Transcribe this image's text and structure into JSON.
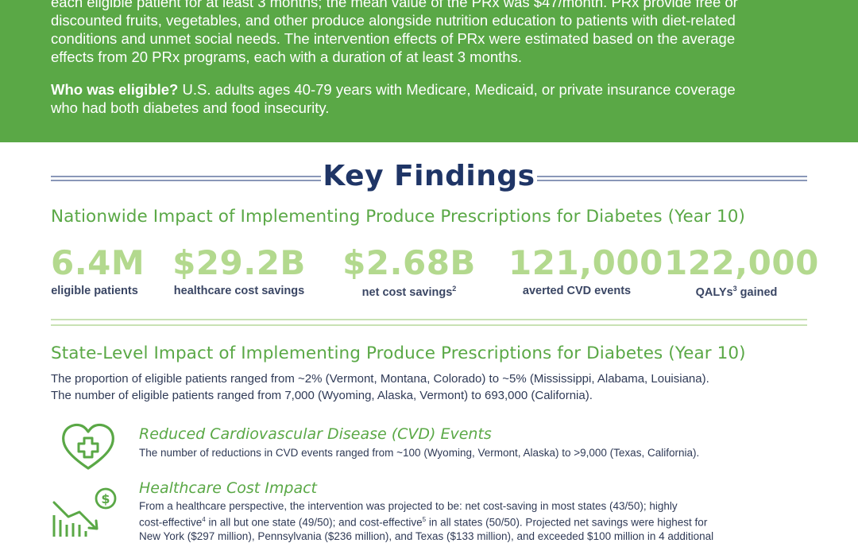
{
  "banner": {
    "line1": "each eligible patient for at least 3 months; the mean value of the PRx was $47/month. PRx provide free or",
    "line2": "discounted fruits, vegetables, and other produce alongside nutrition education to patients with diet-related",
    "line3": "conditions and unmet social needs. The intervention effects of PRx were estimated based on the average",
    "line4": "effects from 20 PRx programs, each with a duration of at least 3 months.",
    "eligible_label": "Who was eligible?",
    "eligible_line1": " U.S. adults ages 40-79 years with Medicare, Medicaid, or private insurance coverage",
    "eligible_line2": "who had both diabetes and food insecurity."
  },
  "key_findings": {
    "title": "Key Findings"
  },
  "nationwide": {
    "title": "Nationwide Impact of Implementing Produce Prescriptions for Diabetes (Year 10)",
    "stats": [
      {
        "value": "6.4M",
        "label": "eligible patients",
        "sup": ""
      },
      {
        "value": "$29.2B",
        "label": "healthcare cost savings",
        "sup": ""
      },
      {
        "value": "$2.68B",
        "label": "net cost savings",
        "sup": "2"
      },
      {
        "value": "121,000",
        "label": "averted CVD events",
        "sup": ""
      },
      {
        "value": "122,000",
        "label": "QALYs",
        "sup": "3",
        "label_after": " gained"
      }
    ]
  },
  "state": {
    "title": "State-Level Impact of Implementing Produce Prescriptions for Diabetes (Year 10)",
    "line1": "The proportion of eligible patients ranged from ~2% (Vermont, Montana, Colorado) to ~5% (Mississippi, Alabama, Louisiana).",
    "line2": "The number of eligible patients ranged from 7,000 (Wyoming, Alaska, Vermont) to 693,000 (California)."
  },
  "cvd": {
    "title": "Reduced Cardiovascular Disease (CVD) Events",
    "text": "The number of reductions in CVD events ranged from ~100 (Wyoming, Vermont, Alaska) to >9,000 (Texas, California)."
  },
  "cost": {
    "title": "Healthcare Cost Impact",
    "line1": "From a healthcare perspective, the intervention was projected to be: net cost-saving in most states (43/50); highly",
    "line2a": "cost-effective",
    "line2sup1": "4",
    "line2b": " in all but one state (49/50); and cost-effective",
    "line2sup2": "5",
    "line2c": " in all states (50/50). Projected net savings were highest for",
    "line3": "New York ($297 million), Pennsylvania ($236 million), and Texas ($133 million), and exceeded $100 million in 4 additional"
  },
  "colors": {
    "green": "#5aa846",
    "light_green": "#b3d98e",
    "navy": "#1f3566"
  }
}
